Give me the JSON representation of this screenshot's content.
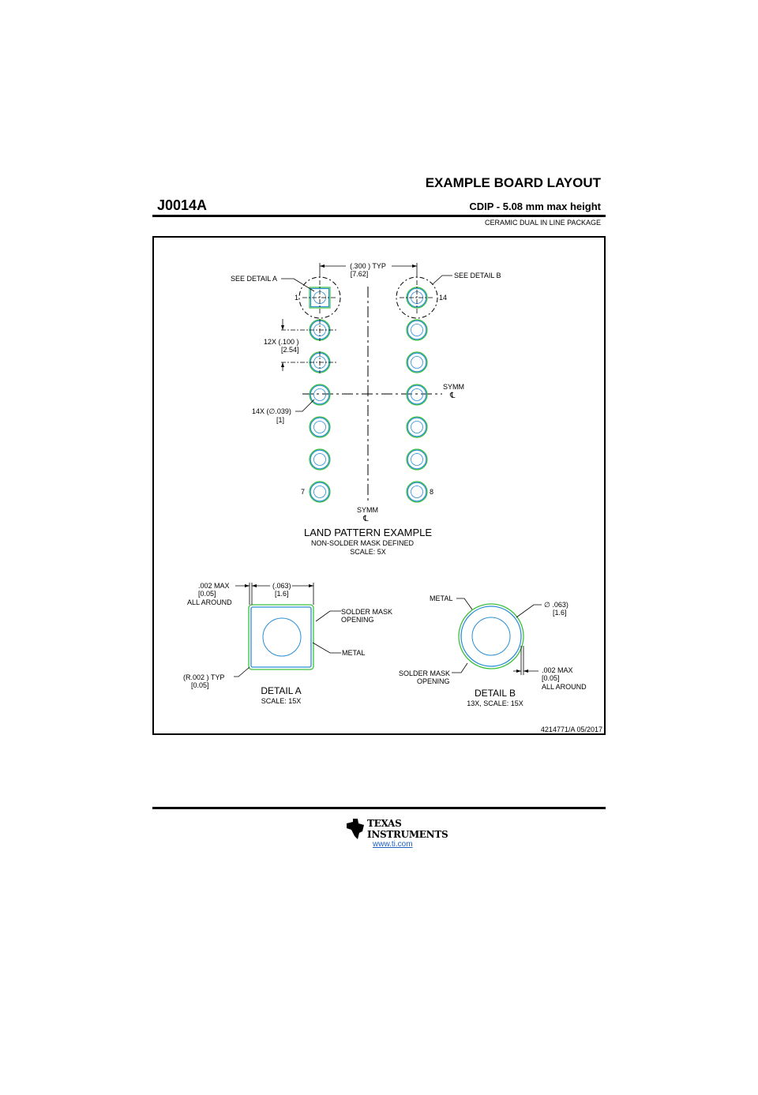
{
  "header": {
    "title": "EXAMPLE BOARD LAYOUT",
    "part_number": "J0014A",
    "subtitle": "CDIP - 5.08 mm max height",
    "package_desc": "CERAMIC DUAL IN LINE PACKAGE"
  },
  "land_pattern": {
    "see_detail_a": "SEE DETAIL  A",
    "see_detail_b": "SEE DETAIL  B",
    "pitch_dim_top": "(.300  ) TYP",
    "pitch_dim_bot": "[7.62]",
    "row_pitch_top": "12X (.100  )",
    "row_pitch_bot": "[2.54]",
    "pad_dia_top": "14X (∅.039)",
    "pad_dia_bot": "[1]",
    "pin_1": "1",
    "pin_7": "7",
    "pin_8": "8",
    "pin_14": "14",
    "symm": "SYMM",
    "centerline": "℄",
    "title": "LAND PATTERN EXAMPLE",
    "note": "NON-SOLDER MASK DEFINED",
    "scale": "SCALE: 5X"
  },
  "detail_a": {
    "max_top": ".002   MAX",
    "max_mid": "[0.05]",
    "max_bot": "ALL AROUND",
    "width_top": "(.063)",
    "width_bot": "[1.6]",
    "mask_label_1": "SOLDER MASK",
    "mask_label_2": "OPENING",
    "metal_label": "METAL",
    "radius_top": "(R.002  ) TYP",
    "radius_bot": "[0.05]",
    "title": "DETAIL  A",
    "scale": "SCALE: 15X"
  },
  "detail_b": {
    "metal_label": "METAL",
    "dia_top": "∅ .063)",
    "dia_bot": "[1.6]",
    "mask_label_1": "SOLDER MASK",
    "mask_label_2": "OPENING",
    "max_top": ".002   MAX",
    "max_mid": "[0.05]",
    "max_bot": "ALL AROUND",
    "title": "DETAIL  B",
    "scale": "13X, SCALE: 15X"
  },
  "doc_id": "4214771/A   05/2017",
  "footer": {
    "brand_line1": "TEXAS",
    "brand_line2": "INSTRUMENTS",
    "url": "www.ti.com"
  },
  "colors": {
    "pad_outline": "#2a8fd6",
    "mask_outline": "#3cc03c",
    "drill": "#2a8fd6",
    "ink": "#000000"
  }
}
